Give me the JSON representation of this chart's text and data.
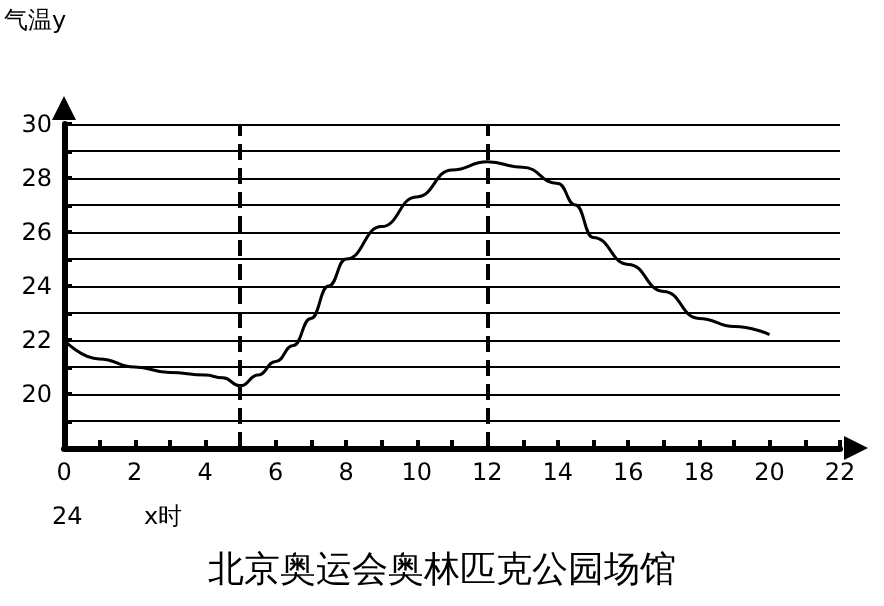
{
  "chart_data": {
    "type": "line",
    "title": "北京奥运会奥林匹克公园场馆",
    "ylabel": "气温y",
    "xlabel": "x时",
    "annotations": [
      "24"
    ],
    "x": [
      0,
      1,
      2,
      3,
      4,
      4.5,
      5,
      5.5,
      6,
      6.5,
      7,
      7.5,
      8,
      9,
      10,
      11,
      12,
      13,
      14,
      14.5,
      15,
      16,
      17,
      18,
      19,
      20
    ],
    "series": [
      {
        "color": "#000000",
        "values": [
          22.0,
          21.3,
          21.0,
          20.8,
          20.7,
          20.6,
          20.3,
          20.7,
          21.2,
          21.8,
          22.8,
          24.0,
          25.0,
          26.2,
          27.3,
          28.3,
          28.6,
          28.4,
          27.8,
          27.0,
          25.8,
          24.8,
          23.8,
          22.8,
          22.5,
          22.2
        ]
      }
    ],
    "xlim": [
      0,
      22
    ],
    "xticks": [
      0,
      {
        "value": 1,
        "label": null
      },
      2,
      {
        "value": 3,
        "label": null
      },
      4,
      {
        "value": 5,
        "label": null
      },
      6,
      {
        "value": 7,
        "label": null
      },
      8,
      {
        "value": 9,
        "label": null
      },
      10,
      {
        "value": 11,
        "label": null
      },
      12,
      {
        "value": 13,
        "label": null
      },
      14,
      {
        "value": 15,
        "label": null
      },
      16,
      {
        "value": 17,
        "label": null
      },
      18,
      {
        "value": 19,
        "label": null
      },
      20,
      {
        "value": 21,
        "label": null
      },
      22
    ],
    "ylim": [
      18,
      30
    ],
    "yticks": [
      {
        "value": 19,
        "label": null
      },
      20,
      {
        "value": 21,
        "label": null
      },
      22,
      {
        "value": 23,
        "label": null
      },
      24,
      {
        "value": 25,
        "label": null
      },
      26,
      {
        "value": 27,
        "label": null
      },
      28,
      {
        "value": 29,
        "label": null
      },
      30
    ],
    "ref_lines": [
      {
        "axis": "x",
        "value": 5,
        "line_style": "dashed"
      },
      {
        "axis": "x",
        "value": 12,
        "line_style": "dashed"
      }
    ],
    "grid": "y",
    "marker": "none",
    "line_style": "solid"
  }
}
